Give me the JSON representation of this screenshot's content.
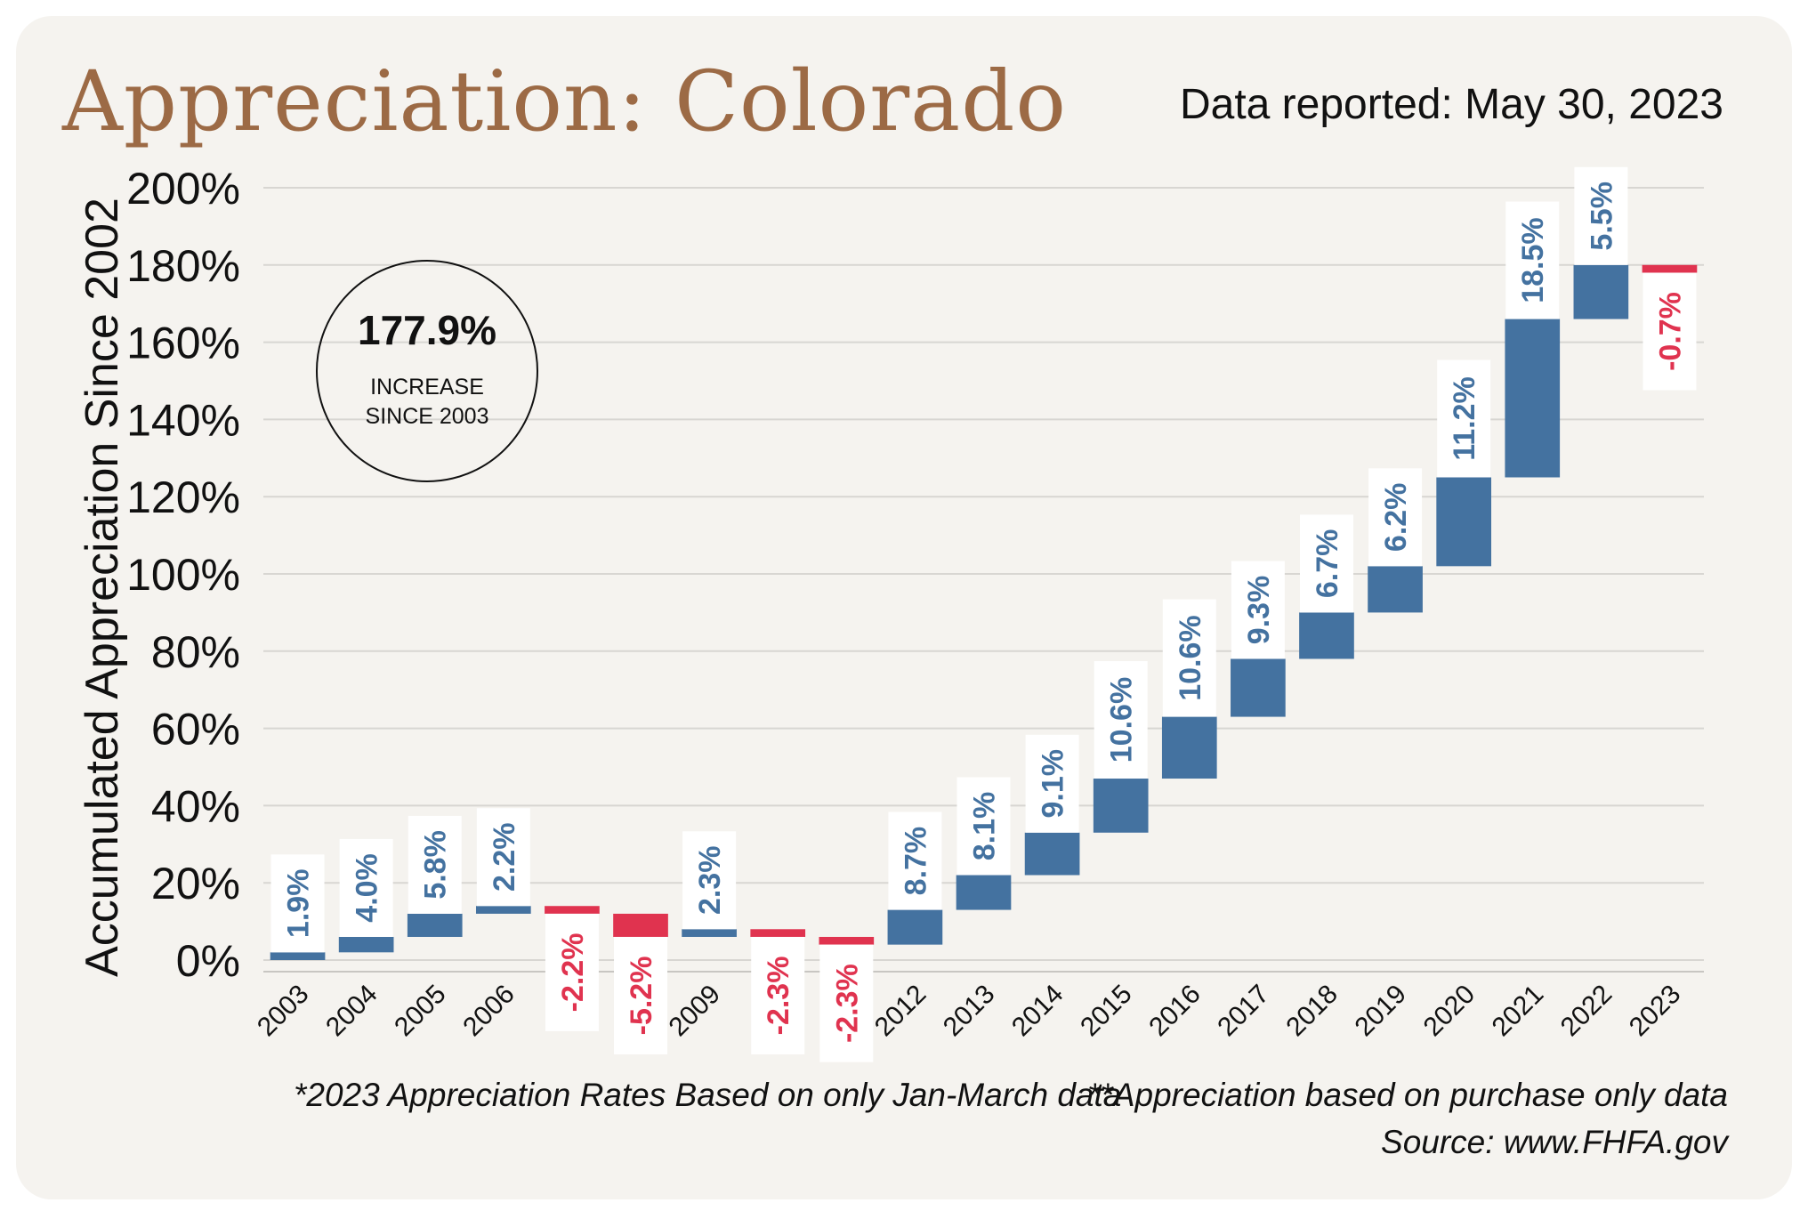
{
  "title": "Appreciation: Colorado",
  "reported": "Data reported: May 30, 2023",
  "badge": {
    "value": "177.9%",
    "line1": "INCREASE",
    "line2": "SINCE 2003"
  },
  "notes": {
    "note1": "*2023 Appreciation Rates Based on only Jan-March data",
    "note2": "**Appreciation based on purchase only data",
    "source": "Source: www.FHFA.gov"
  },
  "colors": {
    "increase": "#4472a0",
    "decrease": "#e0334f",
    "title": "#9c6a45",
    "background": "#f5f3ef"
  },
  "chart_data": {
    "type": "bar",
    "subtype": "waterfall",
    "ylabel": "Accumulated Appreciation Since 2002",
    "ylim": [
      0,
      200
    ],
    "yticks": [
      "0%",
      "20%",
      "40%",
      "60%",
      "80%",
      "100%",
      "120%",
      "140%",
      "160%",
      "180%",
      "200%"
    ],
    "categories": [
      "2003",
      "2004",
      "2005",
      "2006",
      "",
      "",
      "2009",
      "",
      "",
      "2012",
      "2013",
      "2014",
      "2015",
      "2016",
      "2017",
      "2018",
      "2019",
      "2020",
      "2021",
      "2022",
      "2023"
    ],
    "labels": [
      "1.9%",
      "4.0%",
      "5.8%",
      "2.2%",
      "-2.2%",
      "-5.2%",
      "2.3%",
      "-2.3%",
      "-2.3%",
      "8.7%",
      "8.1%",
      "9.1%",
      "10.6%",
      "10.6%",
      "9.3%",
      "6.7%",
      "6.2%",
      "11.2%",
      "18.5%",
      "5.5%",
      "-0.7%"
    ],
    "start": [
      0,
      2,
      6,
      12,
      14,
      12,
      6,
      8,
      6,
      4,
      13,
      22,
      33,
      47,
      63,
      78,
      90,
      102,
      125,
      166,
      180
    ],
    "end": [
      2,
      6,
      12,
      14,
      12,
      6,
      8,
      6,
      4,
      13,
      22,
      33,
      47,
      63,
      78,
      90,
      102,
      125,
      166,
      180,
      178
    ],
    "grid": true
  }
}
